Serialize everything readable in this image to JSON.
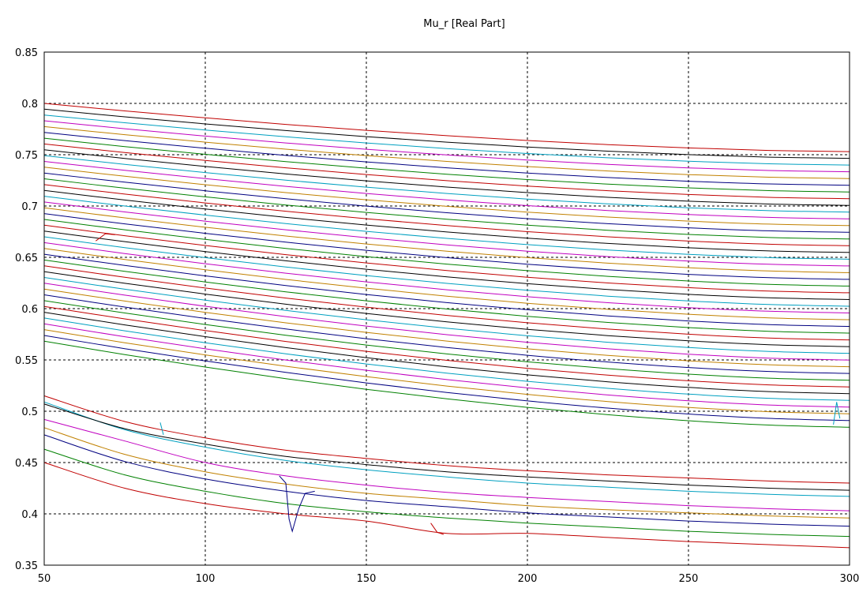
{
  "chart_data": {
    "type": "line",
    "title": "Mu_r [Real Part]",
    "xlabel": "",
    "ylabel": "",
    "xlim": [
      50,
      300
    ],
    "ylim": [
      0.35,
      0.85
    ],
    "xticks": [
      "50",
      "100",
      "150",
      "200",
      "250",
      "300"
    ],
    "yticks": [
      "0.35",
      "0.4",
      "0.45",
      "0.5",
      "0.55",
      "0.6",
      "0.65",
      "0.7",
      "0.75",
      "0.8",
      "0.85"
    ],
    "grid": true,
    "legend": "none",
    "series_count": 50,
    "series_start_range": [
      0.45,
      0.8
    ],
    "series_end_range": [
      0.367,
      0.753
    ],
    "series_colors": [
      "#c00000",
      "#008000",
      "#000080",
      "#c08000",
      "#c000c0",
      "#00a0c0",
      "#000000"
    ],
    "series": [
      {
        "x": [
          50,
          75,
          100,
          125,
          150,
          175,
          200,
          225,
          250,
          275,
          300
        ],
        "y": [
          0.45,
          0.425,
          0.41,
          0.4,
          0.393,
          0.381,
          0.381,
          0.377,
          0.373,
          0.37,
          0.367
        ]
      },
      {
        "x": [
          50,
          75,
          100,
          125,
          150,
          175,
          200,
          225,
          250,
          275,
          300
        ],
        "y": [
          0.463,
          0.438,
          0.422,
          0.41,
          0.402,
          0.396,
          0.391,
          0.387,
          0.383,
          0.38,
          0.378
        ]
      },
      {
        "x": [
          50,
          75,
          100,
          125,
          150,
          175,
          200,
          225,
          250,
          275,
          300
        ],
        "y": [
          0.477,
          0.451,
          0.434,
          0.422,
          0.413,
          0.407,
          0.401,
          0.397,
          0.393,
          0.39,
          0.388
        ]
      },
      {
        "x": [
          50,
          75,
          100,
          125,
          150,
          175,
          200,
          225,
          250,
          275,
          300
        ],
        "y": [
          0.484,
          0.458,
          0.441,
          0.429,
          0.42,
          0.414,
          0.408,
          0.404,
          0.401,
          0.398,
          0.396
        ]
      },
      {
        "x": [
          50,
          75,
          100,
          125,
          150,
          175,
          200,
          225,
          250,
          275,
          300
        ],
        "y": [
          0.492,
          0.471,
          0.45,
          0.437,
          0.428,
          0.421,
          0.416,
          0.412,
          0.408,
          0.405,
          0.403
        ]
      },
      {
        "x": [
          50,
          75,
          100,
          125,
          150,
          175,
          200,
          225,
          250,
          275,
          300
        ],
        "y": [
          0.509,
          0.482,
          0.465,
          0.452,
          0.443,
          0.436,
          0.43,
          0.426,
          0.422,
          0.419,
          0.417
        ]
      },
      {
        "x": [
          50,
          75,
          100,
          125,
          150,
          175,
          200,
          225,
          250,
          275,
          300
        ],
        "y": [
          0.507,
          0.483,
          0.468,
          0.456,
          0.448,
          0.441,
          0.436,
          0.432,
          0.428,
          0.425,
          0.423
        ]
      },
      {
        "x": [
          50,
          75,
          100,
          125,
          150,
          175,
          200,
          225,
          250,
          275,
          300
        ],
        "y": [
          0.515,
          0.49,
          0.474,
          0.462,
          0.454,
          0.447,
          0.442,
          0.438,
          0.435,
          0.432,
          0.43
        ]
      }
    ],
    "annotations": []
  }
}
